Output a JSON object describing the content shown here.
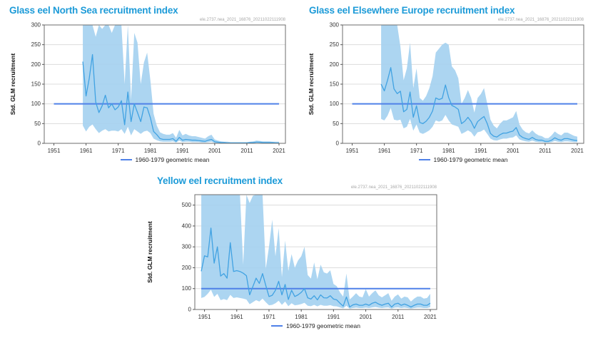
{
  "page": {
    "background": "#ffffff"
  },
  "colors": {
    "title": "#1d9bd8",
    "band": "#a3d0f0",
    "series_line": "#41a2e2",
    "mean_line": "#4f81e8",
    "grid": "#dcdcdc",
    "spine": "#6e6e6e",
    "tick_mark": "#555555",
    "tick_text": "#333333",
    "watermark_text": "#a8a8a8"
  },
  "chart_data": [
    {
      "type": "line",
      "subtype": "line_with_confidence_band",
      "title": "Glass eel North Sea recruitment index",
      "watermark": "ele.2737.nea_2021_16876_20211022111908",
      "xlabel": "",
      "ylabel": "Std. GLM recruitment",
      "xticks": [
        1951,
        1961,
        1971,
        1981,
        1991,
        2001,
        2011,
        2021
      ],
      "yticks": [
        0,
        50,
        100,
        150,
        200,
        250,
        300
      ],
      "ylim": [
        0,
        300
      ],
      "xlim": [
        1948,
        2023
      ],
      "grid": "horizontal",
      "legend_position": "bottom-center",
      "x_start": 1960,
      "x_step": 1,
      "series_name": "Std. GLM recruitment",
      "values": [
        207,
        120,
        165,
        225,
        105,
        78,
        95,
        122,
        90,
        100,
        85,
        92,
        108,
        47,
        130,
        55,
        100,
        78,
        55,
        92,
        90,
        65,
        30,
        22,
        12,
        10,
        10,
        10,
        12,
        5,
        15,
        8,
        10,
        9,
        8,
        8,
        7,
        6,
        5,
        8,
        10,
        4,
        3,
        2,
        2,
        1,
        1,
        1,
        1,
        1,
        1,
        1,
        2,
        2,
        3,
        3,
        2,
        2,
        2,
        2,
        1,
        1
      ],
      "band_upper": [
        320,
        320,
        320,
        320,
        270,
        320,
        290,
        320,
        320,
        280,
        320,
        320,
        320,
        150,
        320,
        110,
        280,
        255,
        150,
        205,
        230,
        160,
        75,
        45,
        28,
        24,
        22,
        22,
        26,
        14,
        34,
        20,
        24,
        20,
        18,
        18,
        16,
        14,
        12,
        18,
        22,
        10,
        7,
        5,
        4,
        4,
        3,
        3,
        3,
        3,
        3,
        3,
        4,
        5,
        7,
        6,
        5,
        5,
        5,
        4,
        4,
        4
      ],
      "band_lower": [
        45,
        30,
        42,
        48,
        36,
        26,
        32,
        36,
        30,
        32,
        32,
        30,
        36,
        24,
        42,
        20,
        36,
        30,
        24,
        30,
        32,
        26,
        12,
        8,
        5,
        4,
        4,
        4,
        5,
        2,
        7,
        3,
        4,
        4,
        3,
        3,
        3,
        2,
        2,
        3,
        4,
        1,
        1,
        1,
        0.5,
        0.5,
        0.5,
        0.5,
        0.5,
        0.5,
        0.5,
        0.5,
        0.5,
        1,
        1.5,
        1,
        1,
        1,
        1,
        0.5,
        0.5,
        0.5
      ],
      "mean_line": {
        "value": 100,
        "label": "1960-1979 geometric mean",
        "x_start": 1951,
        "x_end": 2021
      }
    },
    {
      "type": "line",
      "subtype": "line_with_confidence_band",
      "title": "Glass eel Elsewhere Europe recruitment index",
      "watermark": "ele.2737.nea_2021_16876_20211022111908",
      "xlabel": "",
      "ylabel": "Std. GLM recruitment",
      "xticks": [
        1951,
        1961,
        1971,
        1981,
        1991,
        2001,
        2011,
        2021
      ],
      "yticks": [
        0,
        50,
        100,
        150,
        200,
        250,
        300
      ],
      "ylim": [
        0,
        300
      ],
      "xlim": [
        1948,
        2023
      ],
      "grid": "horizontal",
      "legend_position": "bottom-center",
      "x_start": 1960,
      "x_step": 1,
      "series_name": "Std. GLM recruitment",
      "values": [
        150,
        133,
        160,
        192,
        138,
        126,
        132,
        80,
        86,
        130,
        66,
        95,
        53,
        50,
        56,
        66,
        82,
        115,
        111,
        114,
        148,
        116,
        96,
        92,
        86,
        50,
        56,
        66,
        55,
        38,
        55,
        62,
        68,
        50,
        25,
        18,
        16,
        22,
        26,
        26,
        29,
        31,
        40,
        21,
        15,
        12,
        10,
        15,
        10,
        8,
        8,
        5,
        5,
        8,
        14,
        10,
        8,
        12,
        12,
        10,
        8,
        7
      ],
      "band_upper": [
        320,
        320,
        320,
        320,
        300,
        320,
        245,
        160,
        190,
        255,
        140,
        190,
        115,
        108,
        120,
        140,
        170,
        230,
        240,
        250,
        255,
        250,
        195,
        185,
        165,
        100,
        115,
        135,
        115,
        78,
        115,
        125,
        140,
        100,
        60,
        45,
        38,
        50,
        58,
        58,
        62,
        66,
        82,
        48,
        35,
        28,
        25,
        33,
        25,
        20,
        18,
        13,
        13,
        20,
        30,
        24,
        20,
        27,
        27,
        23,
        19,
        17
      ],
      "band_lower": [
        62,
        58,
        70,
        90,
        60,
        58,
        60,
        38,
        42,
        62,
        32,
        48,
        27,
        24,
        28,
        33,
        42,
        58,
        55,
        58,
        72,
        58,
        48,
        45,
        42,
        24,
        28,
        33,
        28,
        17,
        28,
        30,
        35,
        24,
        12,
        8,
        7,
        10,
        12,
        12,
        14,
        15,
        20,
        10,
        7,
        5,
        4,
        7,
        4,
        3,
        3,
        2,
        2,
        3,
        6,
        4,
        3,
        5,
        5,
        4,
        3,
        3
      ],
      "mean_line": {
        "value": 100,
        "label": "1960-1979 geometric mean",
        "x_start": 1951,
        "x_end": 2021
      }
    },
    {
      "type": "line",
      "subtype": "line_with_confidence_band",
      "title": "Yellow eel recruitment index",
      "watermark": "ele.2737.nea_2021_16876_20211022111908",
      "xlabel": "",
      "ylabel": "Std. GLM recruitment",
      "xticks": [
        1951,
        1961,
        1971,
        1981,
        1991,
        2001,
        2011,
        2021
      ],
      "yticks": [
        0,
        100,
        200,
        300,
        400,
        500
      ],
      "ylim": [
        0,
        550
      ],
      "xlim": [
        1948,
        2023
      ],
      "grid": "horizontal",
      "legend_position": "bottom-center",
      "x_start": 1950,
      "x_step": 1,
      "series_name": "Std. GLM recruitment",
      "values": [
        183,
        257,
        252,
        390,
        222,
        300,
        160,
        172,
        150,
        320,
        182,
        186,
        182,
        174,
        162,
        70,
        110,
        150,
        125,
        172,
        115,
        62,
        68,
        92,
        135,
        70,
        120,
        48,
        92,
        62,
        70,
        82,
        100,
        56,
        50,
        66,
        46,
        70,
        56,
        55,
        66,
        50,
        46,
        30,
        16,
        60,
        12,
        22,
        26,
        20,
        20,
        26,
        20,
        30,
        35,
        26,
        20,
        26,
        30,
        12,
        26,
        30,
        20,
        26,
        20,
        12,
        20,
        26,
        26,
        20,
        20,
        30
      ],
      "band_upper": [
        560,
        560,
        560,
        560,
        560,
        560,
        560,
        560,
        560,
        560,
        560,
        560,
        560,
        215,
        560,
        510,
        545,
        560,
        560,
        560,
        195,
        300,
        430,
        255,
        390,
        155,
        330,
        185,
        265,
        200,
        235,
        255,
        300,
        165,
        148,
        225,
        145,
        215,
        178,
        172,
        188,
        122,
        112,
        82,
        62,
        172,
        48,
        62,
        78,
        62,
        58,
        98,
        62,
        78,
        92,
        68,
        58,
        68,
        78,
        42,
        62,
        72,
        52,
        62,
        58,
        38,
        52,
        62,
        62,
        52,
        55,
        75
      ],
      "band_lower": [
        55,
        60,
        75,
        95,
        60,
        75,
        45,
        50,
        45,
        70,
        55,
        58,
        55,
        52,
        48,
        25,
        35,
        45,
        38,
        52,
        35,
        20,
        22,
        30,
        42,
        22,
        38,
        16,
        30,
        20,
        22,
        26,
        32,
        18,
        16,
        22,
        15,
        22,
        18,
        18,
        21,
        16,
        15,
        10,
        5,
        18,
        4,
        7,
        9,
        7,
        7,
        9,
        7,
        10,
        12,
        9,
        7,
        9,
        10,
        4,
        9,
        10,
        7,
        9,
        7,
        4,
        7,
        9,
        9,
        7,
        7,
        11
      ],
      "mean_line": {
        "value": 100,
        "label": "1960-1979 geometric mean",
        "x_start": 1950,
        "x_end": 2021
      }
    }
  ]
}
